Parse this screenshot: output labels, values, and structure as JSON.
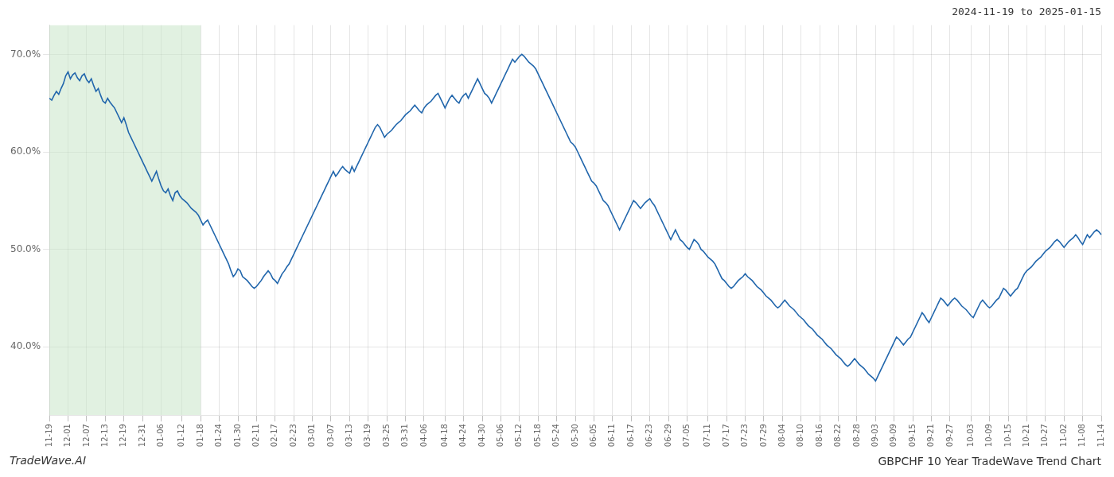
{
  "chart_data": {
    "type": "line",
    "title": "GBPCHF 10 Year TradeWave Trend Chart",
    "subtitle": "2024-11-19 to 2025-01-15",
    "annotations": [
      "TradeWave.AI"
    ],
    "color": "#2166ac",
    "grid": true,
    "shade": {
      "from": "11-19",
      "to": "01-18",
      "color": "#c8e6c8"
    },
    "ylim": [
      33,
      73
    ],
    "yticks": [
      {
        "value": 40.0,
        "label": "40.0%"
      },
      {
        "value": 50.0,
        "label": "50.0%"
      },
      {
        "value": 60.0,
        "label": "60.0%"
      },
      {
        "value": 70.0,
        "label": "70.0%"
      }
    ],
    "categories": [
      "11-19",
      null,
      null,
      null,
      null,
      null,
      null,
      null,
      "12-01",
      null,
      null,
      null,
      null,
      null,
      null,
      null,
      "12-07",
      null,
      null,
      null,
      null,
      null,
      null,
      null,
      "12-13",
      null,
      null,
      null,
      null,
      null,
      null,
      null,
      "12-19",
      null,
      null,
      null,
      null,
      null,
      null,
      null,
      "12-31",
      null,
      null,
      null,
      null,
      null,
      null,
      null,
      "01-06",
      null,
      null,
      null,
      null,
      null,
      null,
      null,
      null,
      "01-12",
      null,
      null,
      null,
      null,
      null,
      null,
      null,
      "01-18",
      null,
      null,
      null,
      null,
      null,
      null,
      null,
      "01-24",
      null,
      null,
      null,
      null,
      null,
      null,
      null,
      "01-30",
      null,
      null,
      null,
      null,
      null,
      null,
      null,
      "02-11",
      null,
      null,
      null,
      null,
      null,
      null,
      null,
      "02-17",
      null,
      null,
      null,
      null,
      null,
      null,
      null,
      "02-23",
      null,
      null,
      null,
      null,
      null,
      null,
      null,
      "03-01",
      null,
      null,
      null,
      null,
      null,
      null,
      null,
      "03-07",
      null,
      null,
      null,
      null,
      null,
      null,
      null,
      "03-13",
      null,
      null,
      null,
      null,
      null,
      null,
      null,
      "03-19",
      null,
      null,
      null,
      null,
      null,
      null,
      null,
      "03-25",
      null,
      null,
      null,
      null,
      null,
      null,
      null,
      "03-31",
      null,
      null,
      null,
      null,
      null,
      null,
      null,
      "04-06",
      null,
      null,
      null,
      null,
      null,
      null,
      null,
      null,
      "04-18",
      null,
      null,
      null,
      null,
      null,
      null,
      null,
      "04-24",
      null,
      null,
      null,
      null,
      null,
      null,
      null,
      "04-30",
      null,
      null,
      null,
      null,
      null,
      null,
      null,
      "05-06",
      null,
      null,
      null,
      null,
      null,
      null,
      null,
      "05-12",
      null,
      null,
      null,
      null,
      null,
      null,
      null,
      "05-18",
      null,
      null,
      null,
      null,
      null,
      null,
      null,
      "05-24",
      null,
      null,
      null,
      null,
      null,
      null,
      null,
      "05-30",
      null,
      null,
      null,
      null,
      null,
      null,
      null,
      "06-05",
      null,
      null,
      null,
      null,
      null,
      null,
      null,
      "06-11",
      null,
      null,
      null,
      null,
      null,
      null,
      null,
      "06-17",
      null,
      null,
      null,
      null,
      null,
      null,
      null,
      "06-23",
      null,
      null,
      null,
      null,
      null,
      null,
      null,
      "06-29",
      null,
      null,
      null,
      null,
      null,
      null,
      null,
      "07-05",
      null,
      null,
      null,
      null,
      null,
      null,
      null,
      null,
      "07-11",
      null,
      null,
      null,
      null,
      null,
      null,
      null,
      "07-17",
      null,
      null,
      null,
      null,
      null,
      null,
      null,
      "07-23",
      null,
      null,
      null,
      null,
      null,
      null,
      null,
      "07-29",
      null,
      null,
      null,
      null,
      null,
      null,
      null,
      "08-04",
      null,
      null,
      null,
      null,
      null,
      null,
      null,
      "08-10",
      null,
      null,
      null,
      null,
      null,
      null,
      null,
      "08-16",
      null,
      null,
      null,
      null,
      null,
      null,
      null,
      "08-22",
      null,
      null,
      null,
      null,
      null,
      null,
      null,
      "08-28",
      null,
      null,
      null,
      null,
      null,
      null,
      null,
      "09-03",
      null,
      null,
      null,
      null,
      null,
      null,
      null,
      "09-09",
      null,
      null,
      null,
      null,
      null,
      null,
      null,
      "09-15",
      null,
      null,
      null,
      null,
      null,
      null,
      null,
      "09-21",
      null,
      null,
      null,
      null,
      null,
      null,
      null,
      "09-27",
      null,
      null,
      null,
      null,
      null,
      null,
      null,
      null,
      "10-03",
      null,
      null,
      null,
      null,
      null,
      null,
      null,
      "10-09",
      null,
      null,
      null,
      null,
      null,
      null,
      null,
      "10-15",
      null,
      null,
      null,
      null,
      null,
      null,
      null,
      "10-21",
      null,
      null,
      null,
      null,
      null,
      null,
      null,
      "10-27",
      null,
      null,
      null,
      null,
      null,
      null,
      null,
      "11-02",
      null,
      null,
      null,
      null,
      null,
      null,
      null,
      "11-08",
      null,
      null,
      null,
      null,
      null,
      null,
      null,
      "11-14"
    ],
    "values": [
      65.5,
      65.3,
      65.8,
      66.2,
      65.9,
      66.5,
      67.0,
      67.8,
      68.2,
      67.5,
      67.9,
      68.1,
      67.6,
      67.3,
      67.8,
      68.0,
      67.4,
      67.1,
      67.5,
      66.8,
      66.2,
      66.5,
      65.8,
      65.2,
      65.0,
      65.5,
      65.1,
      64.8,
      64.5,
      64.0,
      63.5,
      63.0,
      63.5,
      62.8,
      62.0,
      61.5,
      61.0,
      60.5,
      60.0,
      59.5,
      59.0,
      58.5,
      58.0,
      57.5,
      57.0,
      57.5,
      58.0,
      57.2,
      56.5,
      56.0,
      55.8,
      56.2,
      55.5,
      55.0,
      55.8,
      56.0,
      55.5,
      55.2,
      55.0,
      54.8,
      54.5,
      54.2,
      54.0,
      53.8,
      53.5,
      53.0,
      52.5,
      52.8,
      53.0,
      52.5,
      52.0,
      51.5,
      51.0,
      50.5,
      50.0,
      49.5,
      49.0,
      48.5,
      47.8,
      47.2,
      47.5,
      48.0,
      47.8,
      47.2,
      47.0,
      46.8,
      46.5,
      46.2,
      46.0,
      46.2,
      46.5,
      46.8,
      47.2,
      47.5,
      47.8,
      47.5,
      47.0,
      46.8,
      46.5,
      47.0,
      47.5,
      47.8,
      48.2,
      48.5,
      49.0,
      49.5,
      50.0,
      50.5,
      51.0,
      51.5,
      52.0,
      52.5,
      53.0,
      53.5,
      54.0,
      54.5,
      55.0,
      55.5,
      56.0,
      56.5,
      57.0,
      57.5,
      58.0,
      57.5,
      57.8,
      58.2,
      58.5,
      58.2,
      58.0,
      57.8,
      58.5,
      58.0,
      58.5,
      59.0,
      59.5,
      60.0,
      60.5,
      61.0,
      61.5,
      62.0,
      62.5,
      62.8,
      62.5,
      62.0,
      61.5,
      61.8,
      62.0,
      62.2,
      62.5,
      62.8,
      63.0,
      63.2,
      63.5,
      63.8,
      64.0,
      64.2,
      64.5,
      64.8,
      64.5,
      64.2,
      64.0,
      64.5,
      64.8,
      65.0,
      65.2,
      65.5,
      65.8,
      66.0,
      65.5,
      65.0,
      64.5,
      65.0,
      65.5,
      65.8,
      65.5,
      65.2,
      65.0,
      65.5,
      65.8,
      66.0,
      65.5,
      66.0,
      66.5,
      67.0,
      67.5,
      67.0,
      66.5,
      66.0,
      65.8,
      65.5,
      65.0,
      65.5,
      66.0,
      66.5,
      67.0,
      67.5,
      68.0,
      68.5,
      69.0,
      69.5,
      69.2,
      69.5,
      69.8,
      70.0,
      69.8,
      69.5,
      69.2,
      69.0,
      68.8,
      68.5,
      68.0,
      67.5,
      67.0,
      66.5,
      66.0,
      65.5,
      65.0,
      64.5,
      64.0,
      63.5,
      63.0,
      62.5,
      62.0,
      61.5,
      61.0,
      60.8,
      60.5,
      60.0,
      59.5,
      59.0,
      58.5,
      58.0,
      57.5,
      57.0,
      56.8,
      56.5,
      56.0,
      55.5,
      55.0,
      54.8,
      54.5,
      54.0,
      53.5,
      53.0,
      52.5,
      52.0,
      52.5,
      53.0,
      53.5,
      54.0,
      54.5,
      55.0,
      54.8,
      54.5,
      54.2,
      54.5,
      54.8,
      55.0,
      55.2,
      54.8,
      54.5,
      54.0,
      53.5,
      53.0,
      52.5,
      52.0,
      51.5,
      51.0,
      51.5,
      52.0,
      51.5,
      51.0,
      50.8,
      50.5,
      50.2,
      50.0,
      50.5,
      51.0,
      50.8,
      50.5,
      50.0,
      49.8,
      49.5,
      49.2,
      49.0,
      48.8,
      48.5,
      48.0,
      47.5,
      47.0,
      46.8,
      46.5,
      46.2,
      46.0,
      46.2,
      46.5,
      46.8,
      47.0,
      47.2,
      47.5,
      47.2,
      47.0,
      46.8,
      46.5,
      46.2,
      46.0,
      45.8,
      45.5,
      45.2,
      45.0,
      44.8,
      44.5,
      44.2,
      44.0,
      44.2,
      44.5,
      44.8,
      44.5,
      44.2,
      44.0,
      43.8,
      43.5,
      43.2,
      43.0,
      42.8,
      42.5,
      42.2,
      42.0,
      41.8,
      41.5,
      41.2,
      41.0,
      40.8,
      40.5,
      40.2,
      40.0,
      39.8,
      39.5,
      39.2,
      39.0,
      38.8,
      38.5,
      38.2,
      38.0,
      38.2,
      38.5,
      38.8,
      38.5,
      38.2,
      38.0,
      37.8,
      37.5,
      37.2,
      37.0,
      36.8,
      36.5,
      37.0,
      37.5,
      38.0,
      38.5,
      39.0,
      39.5,
      40.0,
      40.5,
      41.0,
      40.8,
      40.5,
      40.2,
      40.5,
      40.8,
      41.0,
      41.5,
      42.0,
      42.5,
      43.0,
      43.5,
      43.2,
      42.8,
      42.5,
      43.0,
      43.5,
      44.0,
      44.5,
      45.0,
      44.8,
      44.5,
      44.2,
      44.5,
      44.8,
      45.0,
      44.8,
      44.5,
      44.2,
      44.0,
      43.8,
      43.5,
      43.2,
      43.0,
      43.5,
      44.0,
      44.5,
      44.8,
      44.5,
      44.2,
      44.0,
      44.2,
      44.5,
      44.8,
      45.0,
      45.5,
      46.0,
      45.8,
      45.5,
      45.2,
      45.5,
      45.8,
      46.0,
      46.5,
      47.0,
      47.5,
      47.8,
      48.0,
      48.2,
      48.5,
      48.8,
      49.0,
      49.2,
      49.5,
      49.8,
      50.0,
      50.2,
      50.5,
      50.8,
      51.0,
      50.8,
      50.5,
      50.2,
      50.5,
      50.8,
      51.0,
      51.2,
      51.5,
      51.2,
      50.8,
      50.5,
      51.0,
      51.5,
      51.2,
      51.5,
      51.8,
      52.0,
      51.8,
      51.5
    ]
  }
}
